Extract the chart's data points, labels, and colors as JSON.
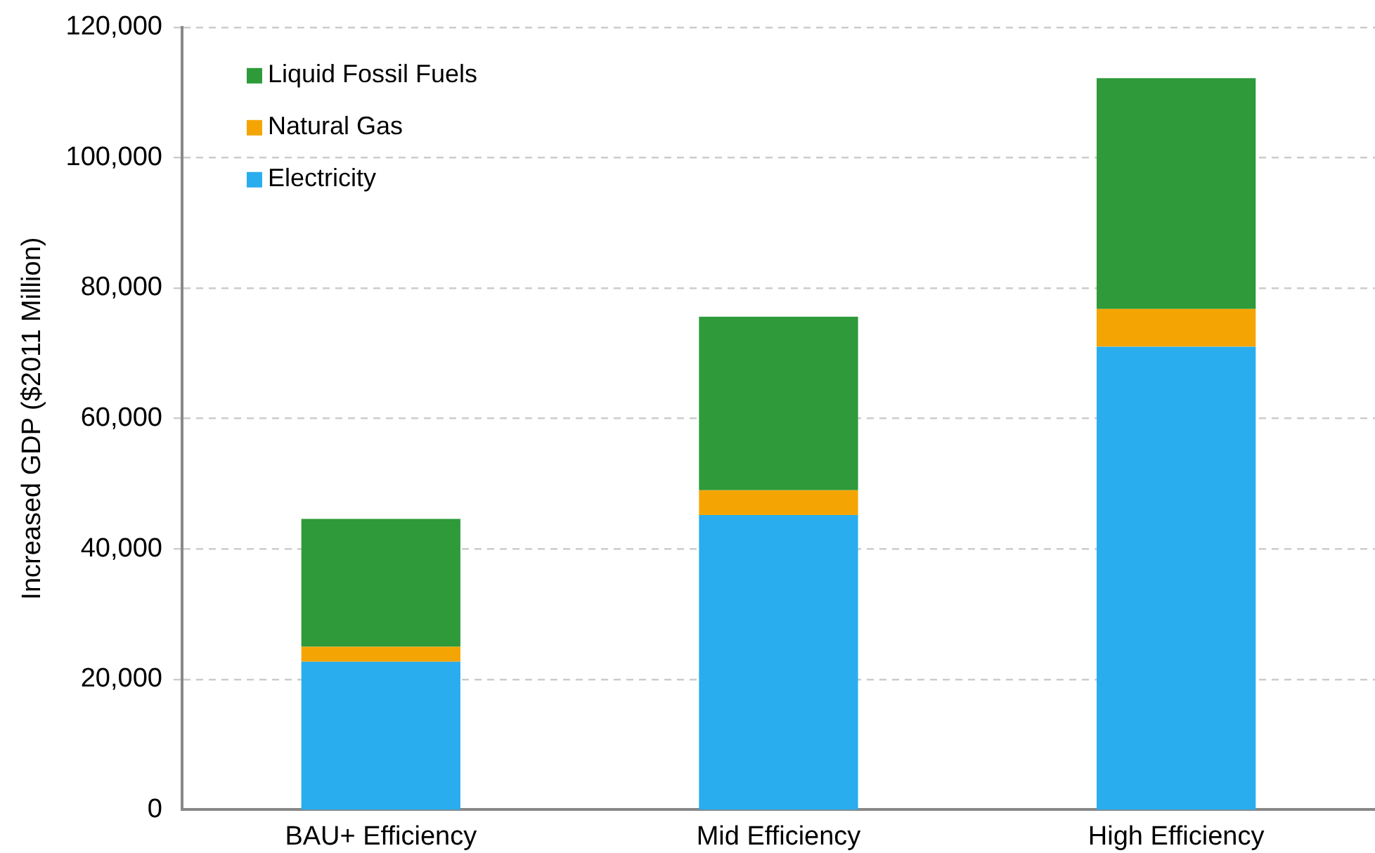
{
  "chart_data": {
    "type": "bar",
    "stacked": true,
    "ylabel": "Increased GDP ($2011 Million)",
    "categories": [
      "BAU+ Efficiency",
      "Mid Efficiency",
      "High Efficiency"
    ],
    "series": [
      {
        "name": "Electricity",
        "color": "#29adee",
        "values": [
          22700,
          45200,
          71000
        ]
      },
      {
        "name": "Natural Gas",
        "color": "#f5a503",
        "values": [
          2300,
          3800,
          5800
        ]
      },
      {
        "name": "Liquid Fossil Fuels",
        "color": "#2e9a3a",
        "values": [
          19600,
          26600,
          35400
        ]
      }
    ],
    "ylim": [
      0,
      120000
    ],
    "yticks": [
      0,
      {
        "value": 20000,
        "label": "20,000"
      },
      {
        "value": 40000,
        "label": "40,000"
      },
      {
        "value": 60000,
        "label": "60,000"
      },
      {
        "value": 80000,
        "label": "80,000"
      },
      {
        "value": 100000,
        "label": "100,000"
      },
      {
        "value": 120000,
        "label": "120,000"
      }
    ],
    "grid": "y",
    "legend": "top left"
  }
}
